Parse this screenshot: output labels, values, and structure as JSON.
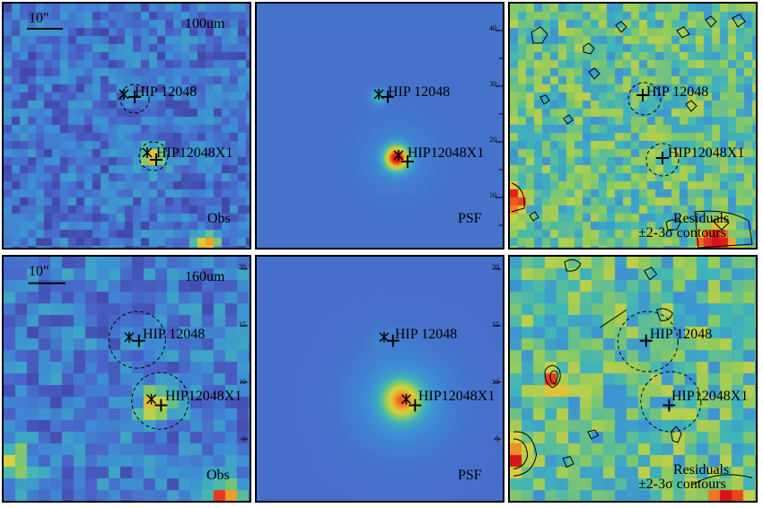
{
  "colormap": [
    "#3a2c8a",
    "#4a63c8",
    "#3d8fd4",
    "#3fb5b8",
    "#8fca5e",
    "#d8d23f",
    "#f0a22a",
    "#e8421f",
    "#d8141a"
  ],
  "rows": [
    {
      "band": "100um",
      "scale_label": "10\"",
      "panels": {
        "obs": {
          "label": "Obs"
        },
        "psf": {
          "label": "PSF",
          "right_ticks": [
            "40",
            "30",
            "20",
            "10"
          ]
        },
        "res": {
          "label_line1": "Residuals",
          "label_line2": "±2-3σ contours"
        }
      },
      "sources": [
        {
          "name": "HIP 12048"
        },
        {
          "name": "HIP12048X1"
        }
      ]
    },
    {
      "band": "160um",
      "scale_label": "10\"",
      "panels": {
        "obs": {
          "label": "Obs",
          "right_ticks": [
            "20",
            "15",
            "10",
            "5"
          ]
        },
        "psf": {
          "label": "PSF",
          "right_ticks": [
            "20",
            "15",
            "10",
            "5"
          ]
        },
        "res": {
          "label_line1": "Residuals",
          "label_line2": "±2-3σ contours"
        }
      },
      "sources": [
        {
          "name": "HIP 12048"
        },
        {
          "name": "HIP12048X1"
        }
      ]
    }
  ]
}
